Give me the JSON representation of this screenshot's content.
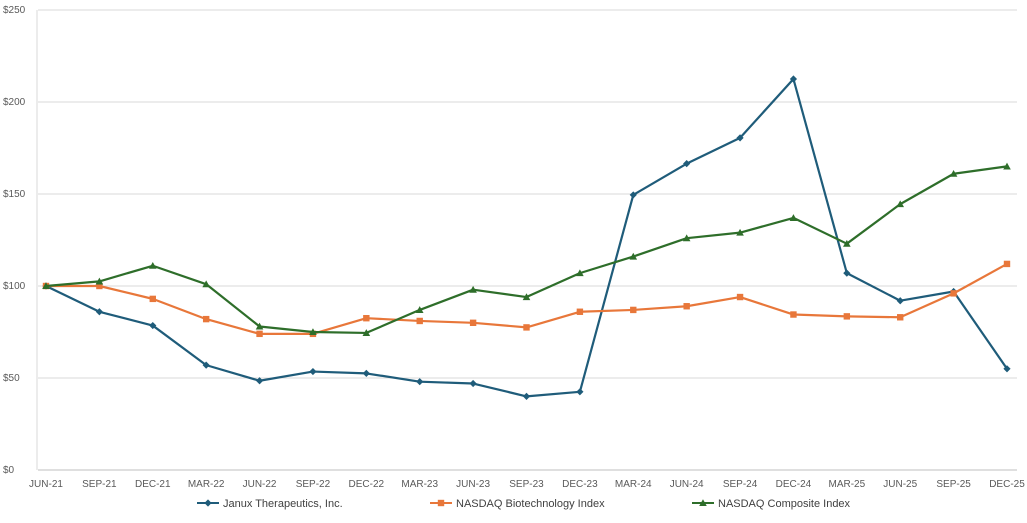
{
  "chart_data": {
    "type": "line",
    "categories": [
      "JUN-21",
      "SEP-21",
      "DEC-21",
      "MAR-22",
      "JUN-22",
      "SEP-22",
      "DEC-22",
      "MAR-23",
      "JUN-23",
      "SEP-23",
      "DEC-23",
      "MAR-24",
      "JUN-24",
      "SEP-24",
      "DEC-24",
      "MAR-25",
      "JUN-25",
      "SEP-25",
      "DEC-25"
    ],
    "yticks": [
      "$0",
      "$50",
      "$100",
      "$150",
      "$200",
      "$250"
    ],
    "ylim": [
      0,
      250
    ],
    "grid": "horizontal",
    "legend": "bottom",
    "series": [
      {
        "name": "Janux Therapeutics, Inc.",
        "color": "#1F5C7A",
        "marker": "diamond",
        "values": [
          100,
          86,
          78.5,
          57,
          48.5,
          53.5,
          52.5,
          48,
          47,
          40,
          42.5,
          149.5,
          166.5,
          180.5,
          212.5,
          107,
          92,
          97,
          55
        ]
      },
      {
        "name": "NASDAQ Biotechnology Index",
        "color": "#E8773A",
        "marker": "square",
        "values": [
          100,
          100,
          93,
          82,
          74,
          74,
          82.5,
          81,
          80,
          77.5,
          86,
          87,
          89,
          94,
          84.5,
          83.5,
          83,
          96,
          112
        ]
      },
      {
        "name": "NASDAQ Composite Index",
        "color": "#2E6E2A",
        "marker": "triangle",
        "values": [
          100,
          102.5,
          111,
          101,
          78,
          75,
          74.5,
          87,
          98,
          94,
          107,
          116,
          126,
          129,
          137,
          123,
          144.5,
          161,
          165
        ]
      }
    ]
  }
}
